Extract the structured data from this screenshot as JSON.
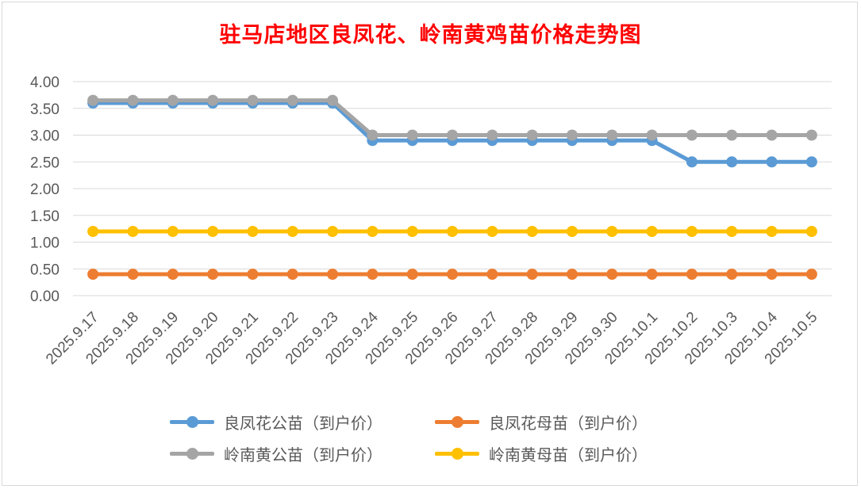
{
  "title": "驻马店地区良凤花、岭南黄鸡苗价格走势图",
  "chart_data": {
    "type": "line",
    "title": "驻马店地区良凤花、岭南黄鸡苗价格走势图",
    "xlabel": "",
    "ylabel": "",
    "ylim": [
      0,
      4
    ],
    "y_ticks": [
      "0.00",
      "0.50",
      "1.00",
      "1.50",
      "2.00",
      "2.50",
      "3.00",
      "3.50",
      "4.00"
    ],
    "grid": "horizontal",
    "legend_position": "bottom",
    "categories": [
      "2025.9.17",
      "2025.9.18",
      "2025.9.19",
      "2025.9.20",
      "2025.9.21",
      "2025.9.22",
      "2025.9.23",
      "2025.9.24",
      "2025.9.25",
      "2025.9.26",
      "2025.9.27",
      "2025.9.28",
      "2025.9.29",
      "2025.9.30",
      "2025.10.1",
      "2025.10.2",
      "2025.10.3",
      "2025.10.4",
      "2025.10.5"
    ],
    "series": [
      {
        "name": "良凤花公苗（到户价）",
        "color": "#5b9bd5",
        "values": [
          3.6,
          3.6,
          3.6,
          3.6,
          3.6,
          3.6,
          3.6,
          2.9,
          2.9,
          2.9,
          2.9,
          2.9,
          2.9,
          2.9,
          2.9,
          2.5,
          2.5,
          2.5,
          2.5
        ]
      },
      {
        "name": "良凤花母苗（到户价）",
        "color": "#ed7d31",
        "values": [
          0.4,
          0.4,
          0.4,
          0.4,
          0.4,
          0.4,
          0.4,
          0.4,
          0.4,
          0.4,
          0.4,
          0.4,
          0.4,
          0.4,
          0.4,
          0.4,
          0.4,
          0.4,
          0.4
        ]
      },
      {
        "name": "岭南黄公苗（到户价）",
        "color": "#a5a5a5",
        "values": [
          3.65,
          3.65,
          3.65,
          3.65,
          3.65,
          3.65,
          3.65,
          3.0,
          3.0,
          3.0,
          3.0,
          3.0,
          3.0,
          3.0,
          3.0,
          3.0,
          3.0,
          3.0,
          3.0
        ]
      },
      {
        "name": "岭南黄母苗（到户价）",
        "color": "#ffc000",
        "values": [
          1.2,
          1.2,
          1.2,
          1.2,
          1.2,
          1.2,
          1.2,
          1.2,
          1.2,
          1.2,
          1.2,
          1.2,
          1.2,
          1.2,
          1.2,
          1.2,
          1.2,
          1.2,
          1.2
        ]
      }
    ]
  }
}
